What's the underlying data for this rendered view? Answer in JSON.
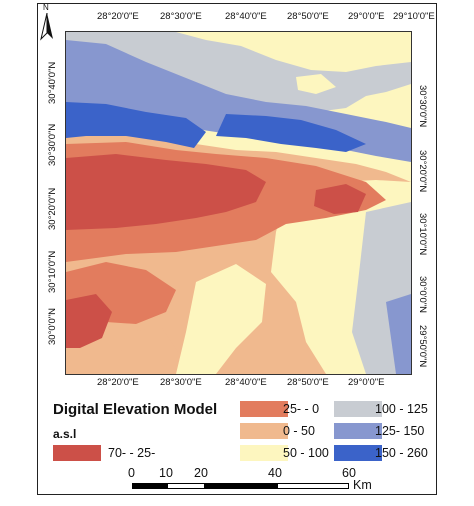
{
  "top_lon_labels": [
    "28°20'0\"E",
    "28°30'0\"E",
    "28°40'0\"E",
    "28°50'0\"E",
    "29°0'0\"E",
    "29°10'0\"E"
  ],
  "bottom_lon_labels": [
    "28°20'0\"E",
    "28°30'0\"E",
    "28°40'0\"E",
    "28°50'0\"E",
    "29°0'0\"E"
  ],
  "left_lat_labels": [
    "30°40'0\"N",
    "30°30'0\"N",
    "30°20'0\"N",
    "30°10'0\"N",
    "30°0'0\"N"
  ],
  "right_lat_labels": [
    "30°30'0\"N",
    "30°20'0\"N",
    "30°10'0\"N",
    "30°0'0\"N",
    "29°50'0\"N"
  ],
  "north_arrow": {
    "icon": "north-arrow-icon",
    "letter": "N"
  },
  "legend": {
    "title": "Digital Elevation Model",
    "subtitle": "a.s.l",
    "classes": [
      {
        "label": "70- - 25-",
        "color": "#cc5048"
      },
      {
        "label": "25- - 0",
        "color": "#e27c5e"
      },
      {
        "label": "0 - 50",
        "color": "#f0b98e"
      },
      {
        "label": "50 - 100",
        "color": "#fdf6bf"
      },
      {
        "label": "100 - 125",
        "color": "#c8ccd2"
      },
      {
        "label": "125- 150",
        "color": "#8797cf"
      },
      {
        "label": "150 - 260",
        "color": "#3b63c9"
      }
    ]
  },
  "scale_bar": {
    "ticks": [
      "0",
      "10",
      "20",
      "40",
      "60"
    ],
    "units": "Km"
  }
}
